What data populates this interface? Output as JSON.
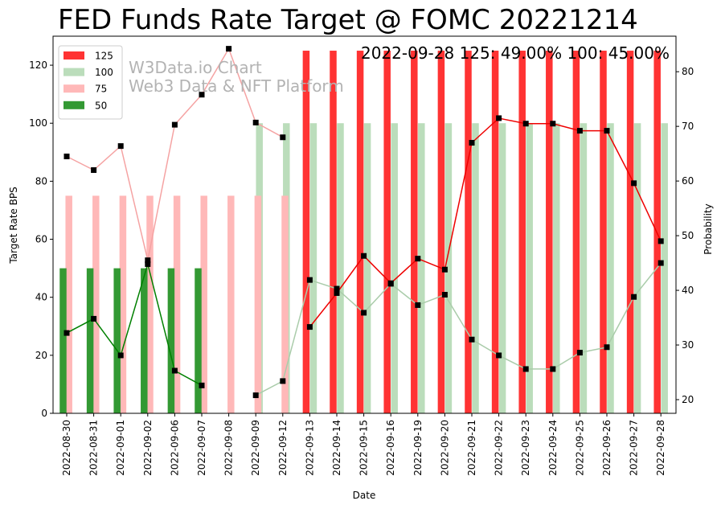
{
  "chart_data": {
    "type": "bar",
    "title": "FED Funds Rate Target @ FOMC 20221214",
    "annotation": "2022-09-28 125: 49.00% 100: 45.00%",
    "watermark": [
      "W3Data.io Chart",
      "Web3 Data & NFT Platform"
    ],
    "xlabel": "Date",
    "ylabel": "Target Rate BPS",
    "y2label": "Probability",
    "ylim": [
      0,
      130
    ],
    "y2lim": [
      17.5,
      86.5
    ],
    "yticks": [
      0,
      20,
      40,
      60,
      80,
      100,
      120
    ],
    "y2ticks": [
      20,
      30,
      40,
      50,
      60,
      70,
      80
    ],
    "categories": [
      "2022-08-30",
      "2022-08-31",
      "2022-09-01",
      "2022-09-02",
      "2022-09-06",
      "2022-09-07",
      "2022-09-08",
      "2022-09-09",
      "2022-09-12",
      "2022-09-13",
      "2022-09-14",
      "2022-09-15",
      "2022-09-16",
      "2022-09-19",
      "2022-09-20",
      "2022-09-21",
      "2022-09-22",
      "2022-09-23",
      "2022-09-24",
      "2022-09-25",
      "2022-09-26",
      "2022-09-27",
      "2022-09-28"
    ],
    "bar_series": [
      {
        "name": "125",
        "color": "#ff3333",
        "offset": -1,
        "values": [
          null,
          null,
          null,
          null,
          null,
          null,
          null,
          null,
          null,
          125,
          125,
          125,
          125,
          125,
          125,
          125,
          125,
          125,
          125,
          125,
          125,
          125,
          125
        ]
      },
      {
        "name": "100",
        "color": "#bbddbb",
        "offset": 1,
        "values": [
          null,
          null,
          null,
          null,
          null,
          null,
          null,
          100,
          100,
          100,
          100,
          100,
          100,
          100,
          100,
          100,
          100,
          100,
          100,
          100,
          100,
          100,
          100
        ]
      },
      {
        "name": "75",
        "color": "#ffb8b8",
        "offset": 0.6,
        "values": [
          75,
          75,
          75,
          75,
          75,
          75,
          75,
          75,
          75,
          null,
          null,
          null,
          null,
          null,
          null,
          null,
          null,
          null,
          null,
          null,
          null,
          null,
          null
        ]
      },
      {
        "name": "50",
        "color": "#339933",
        "offset": -1,
        "values": [
          50,
          50,
          50,
          50,
          50,
          50,
          null,
          null,
          null,
          null,
          null,
          null,
          null,
          null,
          null,
          null,
          null,
          null,
          null,
          null,
          null,
          null,
          null
        ]
      }
    ],
    "line_series": [
      {
        "name": "125 probability",
        "color": "#ee0000",
        "values": [
          null,
          null,
          null,
          null,
          null,
          null,
          null,
          null,
          null,
          33.3,
          39.5,
          46.3,
          41.3,
          45.8,
          43.8,
          67.0,
          71.5,
          70.5,
          70.5,
          69.2,
          69.2,
          59.6,
          49.0
        ]
      },
      {
        "name": "100 probability",
        "color": "#aaccaa",
        "values": [
          null,
          null,
          null,
          null,
          null,
          null,
          null,
          20.8,
          23.4,
          41.9,
          40.3,
          35.9,
          41.2,
          37.3,
          39.2,
          31.0,
          28.1,
          25.6,
          25.6,
          28.6,
          29.6,
          38.8,
          45.0
        ]
      },
      {
        "name": "75 probability",
        "color": "#f5a3a3",
        "values": [
          64.5,
          62.0,
          66.4,
          45.5,
          70.3,
          75.8,
          84.2,
          70.7,
          68.0,
          null,
          null,
          null,
          null,
          null,
          null,
          null,
          null,
          null,
          null,
          null,
          null,
          null,
          null
        ]
      },
      {
        "name": "50 probability",
        "color": "#008000",
        "values": [
          32.2,
          34.8,
          28.1,
          44.8,
          25.3,
          22.6,
          null,
          null,
          null,
          null,
          null,
          null,
          null,
          null,
          null,
          null,
          null,
          null,
          null,
          null,
          null,
          null,
          null
        ]
      }
    ],
    "legend": [
      {
        "label": "125",
        "color": "#ff3333"
      },
      {
        "label": "100",
        "color": "#bbddbb"
      },
      {
        "label": "75",
        "color": "#ffb8b8"
      },
      {
        "label": "50",
        "color": "#339933"
      }
    ],
    "legend_position": "top-left"
  }
}
